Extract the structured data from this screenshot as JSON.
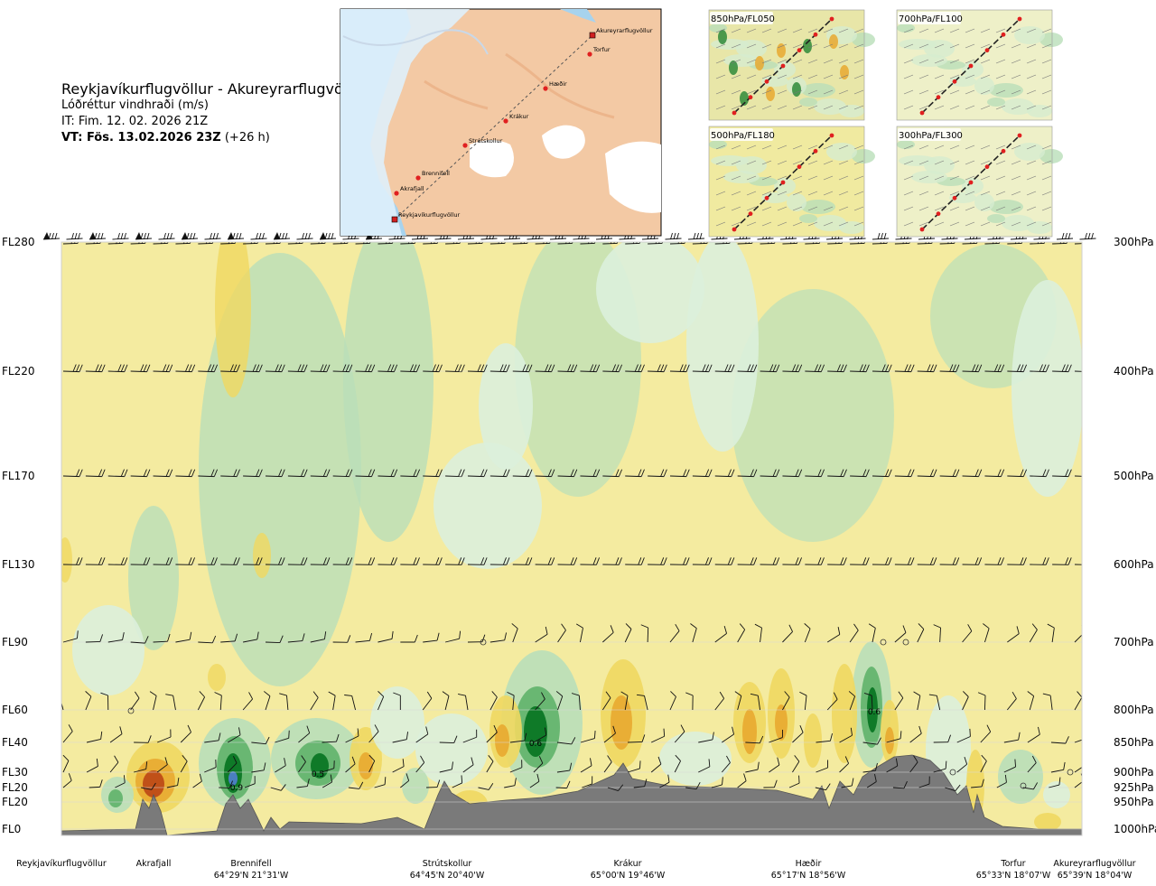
{
  "title": {
    "route": "Reykjavíkurflugvöllur - Akureyrarflugvöllur",
    "variable": "Lóðréttur vindhraði (m/s)",
    "init_time": "IT: Fim. 12. 02. 2026 21Z",
    "valid_prefix": "VT: Fös. 13.02.2026 23Z",
    "valid_suffix": " (+26 h)"
  },
  "map": {
    "stations": [
      "Akureyrarflugvöllur",
      "Torfur",
      "Hæðir",
      "Krákur",
      "Strútskollur",
      "Brennifell",
      "Akrafjall",
      "Reykjavíkurflugvöllur"
    ]
  },
  "mini_maps": [
    {
      "label": "850hPa/FL050"
    },
    {
      "label": "700hPa/FL100"
    },
    {
      "label": "500hPa/FL180"
    },
    {
      "label": "300hPa/FL300"
    }
  ],
  "chart_data": {
    "type": "heatmap",
    "description_free": true,
    "x_stations": [
      {
        "name": "Reykjavíkurflugvöllur",
        "coord": "",
        "pos": 0.0
      },
      {
        "name": "Akrafjall",
        "coord": "",
        "pos": 0.08
      },
      {
        "name": "Brennifell",
        "coord": "64°29'N 21°31'W",
        "pos": 0.19
      },
      {
        "name": "Strútskollur",
        "coord": "64°45'N 20°40'W",
        "pos": 0.385
      },
      {
        "name": "Krákur",
        "coord": "65°00'N 19°46'W",
        "pos": 0.56
      },
      {
        "name": "Hæðir",
        "coord": "65°17'N 18°56'W",
        "pos": 0.75
      },
      {
        "name": "Torfur",
        "coord": "65°33'N 18°07'W",
        "pos": 0.94
      },
      {
        "name": "Akureyrarflugvöllur",
        "coord": "65°39'N 18°04'W",
        "pos": 1.0
      }
    ],
    "levels": [
      {
        "fl": "FL280",
        "hpa": "300hPa"
      },
      {
        "fl": "FL220",
        "hpa": "400hPa"
      },
      {
        "fl": "FL170",
        "hpa": "500hPa"
      },
      {
        "fl": "FL130",
        "hpa": "600hPa"
      },
      {
        "fl": "FL90",
        "hpa": "700hPa"
      },
      {
        "fl": "FL60",
        "hpa": "800hPa"
      },
      {
        "fl": "FL40",
        "hpa": "850hPa"
      },
      {
        "fl": "FL30",
        "hpa": "900hPa"
      },
      {
        "fl": "FL20",
        "hpa": "925hPa"
      },
      {
        "fl": "FL20",
        "hpa": "950hPa"
      },
      {
        "fl": "FL0",
        "hpa": "1000hPa"
      }
    ],
    "contour_labels": [
      "0.9",
      "0.5",
      "0.6",
      "0.6"
    ],
    "colors": {
      "updraft_strong": "#0f7a28",
      "updraft_med": "#5fb36a",
      "updraft_weak": "#b9dfb9",
      "updraft_faint": "#dcefdc",
      "neutral": "#f4f8f0",
      "down_faint": "#f6ecaa",
      "down_weak": "#f0d860",
      "down_med": "#e8a830",
      "down_strong": "#c05018",
      "terrain": "#7a7a7a",
      "updraft_max": "#4a7fc0"
    }
  }
}
